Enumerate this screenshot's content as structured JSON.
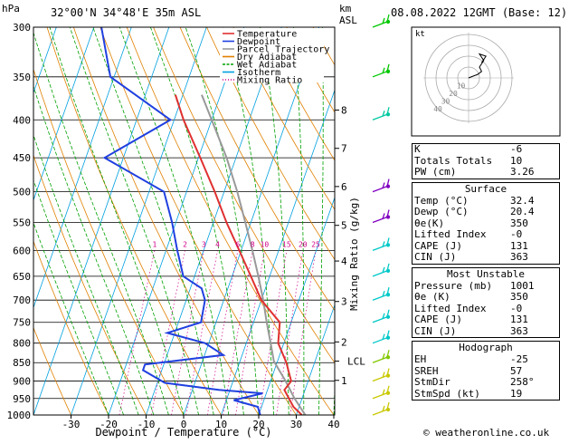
{
  "header": {
    "p_unit": "hPa",
    "location": "32°00'N  34°48'E  35m  ASL",
    "km_unit": "km",
    "asl": "ASL",
    "datetime": "08.08.2022  12GMT  (Base: 12)"
  },
  "chart_data": {
    "type": "skew-t",
    "xlabel": "Dewpoint / Temperature (°C)",
    "right_label": "Mixing Ratio (g/kg)",
    "pressure_levels": [
      300,
      350,
      400,
      450,
      500,
      550,
      600,
      650,
      700,
      750,
      800,
      850,
      900,
      950,
      1000
    ],
    "pressure_labels": [
      "300",
      "350",
      "400",
      "450",
      "500",
      "550",
      "600",
      "650",
      "700",
      "750",
      "800",
      "850",
      "900",
      "950",
      "1000"
    ],
    "temp_ticks": [
      -30,
      -20,
      -10,
      0,
      10,
      20,
      30,
      40
    ],
    "temp_tick_labels": [
      "-30",
      "-20",
      "-10",
      "0",
      "10",
      "20",
      "30",
      "40"
    ],
    "km_ticks": [
      {
        "km": "8",
        "p": 388
      },
      {
        "km": "7",
        "p": 437
      },
      {
        "km": "6",
        "p": 492
      },
      {
        "km": "5",
        "p": 555
      },
      {
        "km": "4",
        "p": 620
      },
      {
        "km": "3",
        "p": 703
      },
      {
        "km": "2",
        "p": 797
      },
      {
        "km": "1",
        "p": 898
      }
    ],
    "lcl": {
      "label": "LCL",
      "p": 846
    },
    "mixing_ratio_lines": [
      {
        "label": "1",
        "g": 1
      },
      {
        "label": "2",
        "g": 2
      },
      {
        "label": "3",
        "g": 3
      },
      {
        "label": "4",
        "g": 4
      },
      {
        "label": "6",
        "g": 6
      },
      {
        "label": "8",
        "g": 8
      },
      {
        "label": "10",
        "g": 10
      },
      {
        "label": "15",
        "g": 15
      },
      {
        "label": "20",
        "g": 20
      },
      {
        "label": "25",
        "g": 25
      }
    ],
    "legend": [
      {
        "label": "Temperature",
        "color": "#e03030"
      },
      {
        "label": "Dewpoint",
        "color": "#2040e0"
      },
      {
        "label": "Parcel Trajectory",
        "color": "#999999"
      },
      {
        "label": "Dry Adiabat",
        "color": "#e08000"
      },
      {
        "label": "Wet Adiabat",
        "color": "#00a000"
      },
      {
        "label": "Isotherm",
        "color": "#00a0e0"
      },
      {
        "label": "Mixing Ratio",
        "color": "#d0008a"
      }
    ],
    "temperature": [
      {
        "p": 1000,
        "t": 31.5
      },
      {
        "p": 975,
        "t": 28.5
      },
      {
        "p": 950,
        "t": 26.5
      },
      {
        "p": 925,
        "t": 24.5
      },
      {
        "p": 900,
        "t": 25.5
      },
      {
        "p": 875,
        "t": 24.0
      },
      {
        "p": 850,
        "t": 22.5
      },
      {
        "p": 800,
        "t": 18.5
      },
      {
        "p": 750,
        "t": 17.0
      },
      {
        "p": 700,
        "t": 10.0
      },
      {
        "p": 650,
        "t": 5.0
      },
      {
        "p": 600,
        "t": -0.5
      },
      {
        "p": 550,
        "t": -6.5
      },
      {
        "p": 500,
        "t": -12.5
      },
      {
        "p": 450,
        "t": -19.5
      },
      {
        "p": 400,
        "t": -27.5
      },
      {
        "p": 370,
        "t": -32.0
      }
    ],
    "dewpoint": [
      {
        "p": 1000,
        "t": 20.4
      },
      {
        "p": 975,
        "t": 19.0
      },
      {
        "p": 955,
        "t": 12.0
      },
      {
        "p": 935,
        "t": 19.0
      },
      {
        "p": 925,
        "t": 7.0
      },
      {
        "p": 905,
        "t": -8.0
      },
      {
        "p": 870,
        "t": -15.0
      },
      {
        "p": 855,
        "t": -15.0
      },
      {
        "p": 830,
        "t": 5.0
      },
      {
        "p": 800,
        "t": -1.0
      },
      {
        "p": 775,
        "t": -12.0
      },
      {
        "p": 750,
        "t": -4.0
      },
      {
        "p": 700,
        "t": -5.0
      },
      {
        "p": 675,
        "t": -7.0
      },
      {
        "p": 650,
        "t": -13.0
      },
      {
        "p": 600,
        "t": -17.0
      },
      {
        "p": 550,
        "t": -21.0
      },
      {
        "p": 500,
        "t": -26.0
      },
      {
        "p": 450,
        "t": -45.0
      },
      {
        "p": 400,
        "t": -31.0
      },
      {
        "p": 350,
        "t": -51.0
      },
      {
        "p": 300,
        "t": -58.0
      }
    ],
    "parcel": [
      {
        "p": 1000,
        "t": 32.4
      },
      {
        "p": 950,
        "t": 28.0
      },
      {
        "p": 900,
        "t": 24.0
      },
      {
        "p": 846,
        "t": 19.0
      },
      {
        "p": 800,
        "t": 16.5
      },
      {
        "p": 750,
        "t": 13.5
      },
      {
        "p": 700,
        "t": 10.5
      },
      {
        "p": 650,
        "t": 7.0
      },
      {
        "p": 600,
        "t": 3.0
      },
      {
        "p": 550,
        "t": -1.5
      },
      {
        "p": 500,
        "t": -6.5
      },
      {
        "p": 450,
        "t": -12.5
      },
      {
        "p": 400,
        "t": -20.0
      },
      {
        "p": 370,
        "t": -25.0
      }
    ],
    "wind_barbs": [
      {
        "p": 1000,
        "color": "#c8c800"
      },
      {
        "p": 950,
        "color": "#c8c800"
      },
      {
        "p": 900,
        "color": "#c8c800"
      },
      {
        "p": 850,
        "color": "#80c800"
      },
      {
        "p": 800,
        "color": "#00c8c8"
      },
      {
        "p": 750,
        "color": "#00c8c8"
      },
      {
        "p": 700,
        "color": "#00c8c8"
      },
      {
        "p": 650,
        "color": "#00c8c8"
      },
      {
        "p": 600,
        "color": "#00c8c8"
      },
      {
        "p": 550,
        "color": "#8000c0"
      },
      {
        "p": 500,
        "color": "#8000c0"
      },
      {
        "p": 400,
        "color": "#00c8a0"
      },
      {
        "p": 350,
        "color": "#00c800"
      },
      {
        "p": 300,
        "color": "#00c800"
      }
    ]
  },
  "hodograph": {
    "unit": "kt",
    "ring_labels": [
      "10",
      "20",
      "30",
      "40"
    ],
    "trace": [
      [
        0,
        0
      ],
      [
        5,
        2
      ],
      [
        8,
        3
      ],
      [
        12,
        6
      ],
      [
        10,
        10
      ],
      [
        14,
        16
      ],
      [
        10,
        22
      ],
      [
        16,
        20
      ],
      [
        12,
        14
      ]
    ]
  },
  "indices": [
    {
      "label": "K",
      "value": "-6"
    },
    {
      "label": "Totals Totals",
      "value": "10"
    },
    {
      "label": "PW (cm)",
      "value": "3.26"
    }
  ],
  "surface": {
    "title": "Surface",
    "rows": [
      {
        "label": "Temp (°C)",
        "value": "32.4"
      },
      {
        "label": "Dewp (°C)",
        "value": "20.4"
      },
      {
        "label": "θe(K)",
        "value": "350"
      },
      {
        "label": "Lifted Index",
        "value": "-0"
      },
      {
        "label": "CAPE (J)",
        "value": "131"
      },
      {
        "label": "CIN (J)",
        "value": "363"
      }
    ]
  },
  "unstable": {
    "title": "Most Unstable",
    "rows": [
      {
        "label": "Pressure (mb)",
        "value": "1001"
      },
      {
        "label": "θe (K)",
        "value": "350"
      },
      {
        "label": "Lifted Index",
        "value": "-0"
      },
      {
        "label": "CAPE (J)",
        "value": "131"
      },
      {
        "label": "CIN (J)",
        "value": "363"
      }
    ]
  },
  "hodograph_box": {
    "title": "Hodograph",
    "rows": [
      {
        "label": "EH",
        "value": "-25"
      },
      {
        "label": "SREH",
        "value": "57"
      },
      {
        "label": "StmDir",
        "value": "258°"
      },
      {
        "label": "StmSpd (kt)",
        "value": "19"
      }
    ]
  },
  "footer": {
    "credit": "© weatheronline.co.uk"
  }
}
